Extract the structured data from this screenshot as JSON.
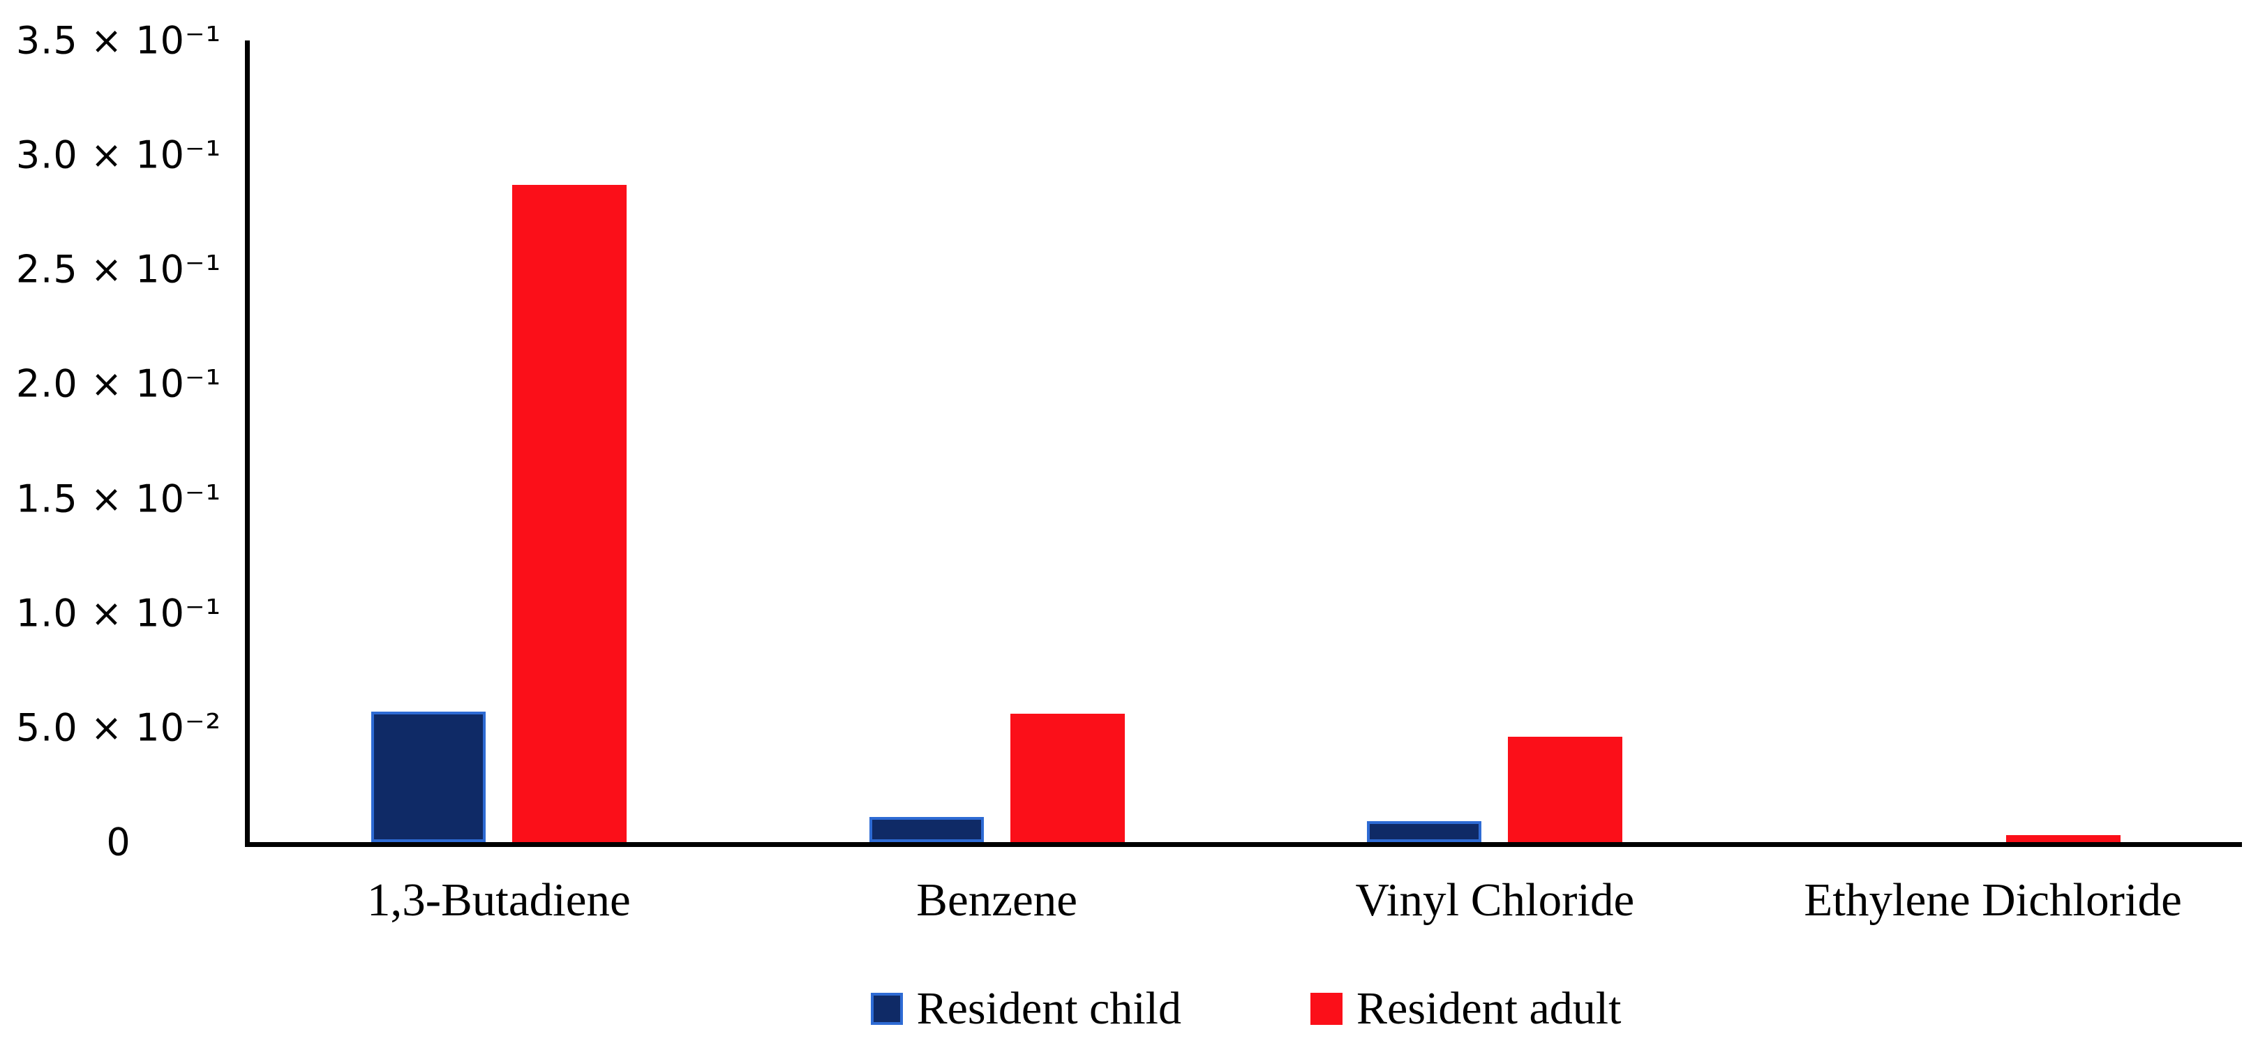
{
  "chart_data": {
    "type": "bar",
    "title": "",
    "xlabel": "",
    "ylabel": "",
    "grid": false,
    "legend_position": "bottom",
    "ylim": [
      0,
      0.35
    ],
    "categories": [
      "1,3-Butadiene",
      "Benzene",
      "Vinyl Chloride",
      "Ethylene Dichloride"
    ],
    "series": [
      {
        "name": "Resident child",
        "color": "#0F2A66",
        "border_color": "#2E6BD4",
        "values": [
          0.057,
          0.011,
          0.009,
          0
        ]
      },
      {
        "name": "Resident adult",
        "color": "#FB0F19",
        "border_color": "#FB0F19",
        "values": [
          0.287,
          0.056,
          0.046,
          0.003
        ]
      }
    ],
    "y_ticks": [
      {
        "value": 0.35,
        "label": "3.5 × 10⁻¹"
      },
      {
        "value": 0.3,
        "label": "3.0 × 10⁻¹"
      },
      {
        "value": 0.25,
        "label": "2.5 × 10⁻¹"
      },
      {
        "value": 0.2,
        "label": "2.0 × 10⁻¹"
      },
      {
        "value": 0.15,
        "label": "1.5 × 10⁻¹"
      },
      {
        "value": 0.1,
        "label": "1.0 × 10⁻¹"
      },
      {
        "value": 0.05,
        "label": "5.0 × 10⁻²"
      },
      {
        "value": 0,
        "label": "0"
      }
    ],
    "axis_color": "#000000"
  }
}
